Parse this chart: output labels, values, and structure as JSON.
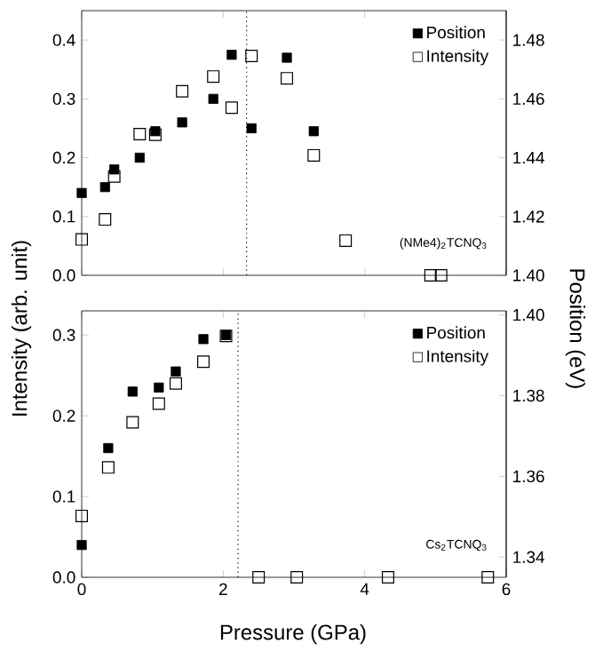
{
  "chart_data": [
    {
      "type": "scatter",
      "ylabel": "Intensity (arb. unit)",
      "y2label": "Position (eV)",
      "marker": "square",
      "legend": "top right",
      "tick_labels": "y",
      "xlim": [
        0,
        6
      ],
      "xticks": [
        {
          "value": 0,
          "label": null
        },
        {
          "value": 2,
          "label": null
        },
        {
          "value": 4,
          "label": null
        },
        {
          "value": 6,
          "label": null
        }
      ],
      "ylim": [
        0,
        0.45
      ],
      "yticks": [
        {
          "value": 0,
          "label": "0.0"
        },
        0.1,
        0.2,
        0.3,
        0.4
      ],
      "y2lim": [
        1.4,
        1.49
      ],
      "y2ticks": [
        {
          "value": 1.4,
          "label": "1.40"
        },
        1.42,
        1.44,
        1.46,
        1.48
      ],
      "ref_lines": [
        {
          "axis": "x",
          "value": 2.33,
          "line_style": "dotted"
        }
      ],
      "annotations": [
        "(NMe4)$_{2}$TCNQ$_{3}$"
      ],
      "series": [
        {
          "name": "Position",
          "color": "#000000",
          "axis": "y2",
          "x": [
            0,
            0.33,
            0.46,
            0.82,
            1.04,
            1.42,
            1.86,
            2.12,
            2.4,
            2.9,
            3.28
          ],
          "values": [
            1.428,
            1.43,
            1.436,
            1.44,
            1.449,
            1.452,
            1.46,
            1.475,
            1.45,
            1.474,
            1.449
          ]
        },
        {
          "name": "Intensity",
          "color": "#000000",
          "x": [
            0,
            0.33,
            0.46,
            0.82,
            1.04,
            1.42,
            1.86,
            2.12,
            2.4,
            2.9,
            3.28,
            3.73,
            4.93,
            5.08
          ],
          "values": [
            0.061,
            0.095,
            0.168,
            0.24,
            0.239,
            0.313,
            0.338,
            0.285,
            0.373,
            0.335,
            0.204,
            0.059,
            0,
            0
          ]
        }
      ]
    },
    {
      "type": "scatter",
      "xlabel": "Pressure (GPa)",
      "marker": "square",
      "legend": "top right",
      "xlim": [
        0,
        6
      ],
      "xticks": [
        0,
        2,
        4,
        6
      ],
      "ylim": [
        0,
        0.33
      ],
      "yticks": [
        {
          "value": 0,
          "label": "0.0"
        },
        0.1,
        0.2,
        0.3
      ],
      "y2lim": [
        1.335,
        1.401
      ],
      "y2ticks": [
        1.34,
        1.36,
        1.38,
        {
          "value": 1.4,
          "label": "1.40"
        }
      ],
      "ref_lines": [
        {
          "axis": "x",
          "value": 2.21,
          "line_style": "dotted"
        }
      ],
      "annotations": [
        "Cs$_{2}$TCNQ$_{3}$"
      ],
      "series": [
        {
          "name": "Position",
          "color": "#000000",
          "axis": "y2",
          "x": [
            0,
            0.375,
            0.72,
            1.09,
            1.33,
            1.72,
            2.04
          ],
          "values": [
            1.343,
            1.367,
            1.381,
            1.382,
            1.386,
            1.394,
            1.395
          ]
        },
        {
          "name": "Intensity",
          "color": "#000000",
          "x": [
            0,
            0.375,
            0.72,
            1.09,
            1.33,
            1.72,
            2.04,
            2.5,
            3.04,
            4.33,
            5.74
          ],
          "values": [
            0.076,
            0.136,
            0.192,
            0.215,
            0.24,
            0.267,
            0.299,
            0,
            0,
            0,
            0
          ]
        }
      ]
    }
  ]
}
